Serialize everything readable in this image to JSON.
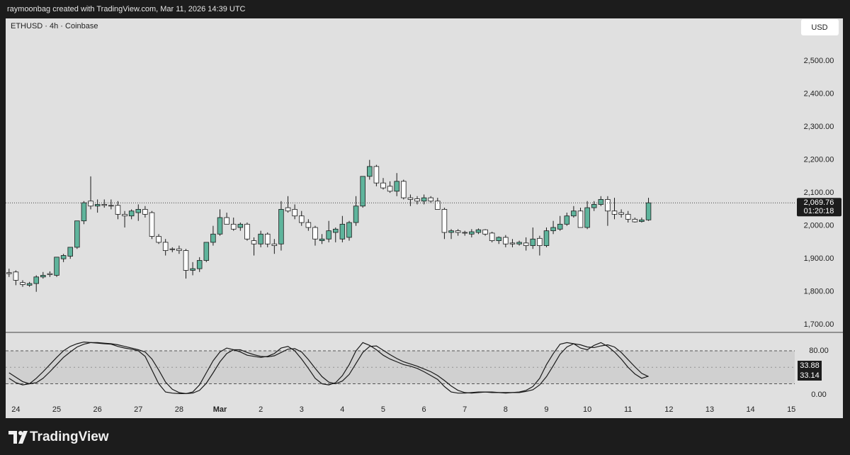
{
  "header": {
    "caption": "raymoonbag created with TradingView.com, Mar 11, 2026 14:39 UTC",
    "currency": "USD"
  },
  "footer": {
    "brand": "TradingView"
  },
  "chart_data": [
    {
      "type": "candlestick",
      "title": "ETHUSD · 4h · Coinbase",
      "open": [
        1858,
        1860,
        1828,
        1820,
        1825,
        1845,
        1855,
        1850,
        1900,
        1908,
        1935,
        2015,
        2075,
        2060,
        2065,
        2062,
        2062,
        2035,
        2030,
        2040,
        2050,
        2040,
        1968,
        1950,
        1930,
        1930,
        1925,
        1865,
        1870,
        1895,
        1950,
        1975,
        2025,
        2005,
        1995,
        2005,
        1955,
        1945,
        1975,
        1945,
        1945,
        2055,
        2050,
        2030,
        2010,
        1995,
        1955,
        1960,
        1980,
        1960,
        1965,
        2010,
        2060,
        2150,
        2180,
        2130,
        2120,
        2105,
        2135,
        2085,
        2082,
        2075,
        2085,
        2075,
        2050,
        1980,
        1985,
        1980,
        1975,
        1980,
        1988,
        1978,
        1955,
        1965,
        1948,
        1945,
        1948,
        1940,
        1962,
        1940,
        1985,
        1990,
        2005,
        2030,
        2045,
        1995,
        2055,
        2065,
        2080,
        2045,
        2040,
        2035,
        2020,
        2013,
        2018
      ],
      "high": [
        1870,
        1865,
        1835,
        1830,
        1850,
        1860,
        1862,
        1905,
        1915,
        1935,
        2015,
        2075,
        2150,
        2080,
        2080,
        2080,
        2075,
        2045,
        2050,
        2065,
        2060,
        2045,
        1975,
        1960,
        1935,
        1940,
        1930,
        1890,
        1905,
        1950,
        2000,
        2050,
        2040,
        2025,
        2010,
        2010,
        1965,
        1985,
        1980,
        1960,
        2075,
        2090,
        2065,
        2045,
        2020,
        2000,
        1975,
        2015,
        1995,
        2030,
        2015,
        2090,
        2150,
        2200,
        2185,
        2145,
        2135,
        2160,
        2140,
        2095,
        2090,
        2095,
        2090,
        2085,
        2055,
        1990,
        1990,
        1985,
        1990,
        1992,
        1990,
        1982,
        1968,
        1972,
        1960,
        1955,
        1965,
        1995,
        1970,
        1995,
        2015,
        2030,
        2040,
        2060,
        2055,
        2075,
        2075,
        2090,
        2090,
        2085,
        2050,
        2045,
        2025,
        2025,
        2085
      ],
      "low": [
        1845,
        1820,
        1815,
        1815,
        1800,
        1840,
        1845,
        1845,
        1890,
        1900,
        1930,
        2005,
        2050,
        2040,
        2055,
        2050,
        2020,
        1995,
        2020,
        2015,
        2025,
        1960,
        1945,
        1910,
        1920,
        1915,
        1840,
        1850,
        1860,
        1890,
        1940,
        1970,
        2005,
        1985,
        1985,
        1955,
        1910,
        1935,
        1935,
        1915,
        1925,
        2040,
        2020,
        2000,
        1985,
        1940,
        1945,
        1950,
        1950,
        1950,
        1955,
        2000,
        2055,
        2140,
        2120,
        2110,
        2100,
        2090,
        2080,
        2060,
        2065,
        2065,
        2070,
        2050,
        1960,
        1960,
        1970,
        1970,
        1965,
        1975,
        1970,
        1950,
        1945,
        1935,
        1935,
        1940,
        1925,
        1930,
        1910,
        1935,
        1975,
        1985,
        2000,
        2025,
        1995,
        1990,
        2045,
        2060,
        2000,
        2020,
        2025,
        2010,
        2010,
        2010,
        2015
      ],
      "close": [
        1855,
        1835,
        1822,
        1825,
        1845,
        1850,
        1852,
        1905,
        1910,
        1935,
        2015,
        2070,
        2060,
        2065,
        2062,
        2060,
        2035,
        2030,
        2045,
        2050,
        2035,
        1968,
        1950,
        1925,
        1928,
        1925,
        1865,
        1870,
        1895,
        1950,
        1975,
        2025,
        2005,
        1990,
        2005,
        1960,
        1945,
        1975,
        1945,
        1940,
        2050,
        2045,
        2030,
        2010,
        1995,
        1960,
        1960,
        1985,
        1990,
        2005,
        2010,
        2060,
        2150,
        2180,
        2130,
        2115,
        2105,
        2135,
        2085,
        2080,
        2075,
        2085,
        2075,
        2050,
        1980,
        1985,
        1980,
        1978,
        1982,
        1988,
        1975,
        1955,
        1965,
        1945,
        1945,
        1950,
        1940,
        1960,
        1940,
        1985,
        1995,
        2005,
        2030,
        2045,
        1995,
        2055,
        2065,
        2080,
        2045,
        2035,
        2035,
        2020,
        2012,
        2018,
        2069.76
      ],
      "last_label": "2,069.76",
      "countdown": "01:20:18",
      "up_color": "#5fb49c",
      "down_color": "#ffffff",
      "outline": "#1a1a1a",
      "ylim": [
        1679,
        2629
      ],
      "yticks": [
        {
          "value": 1700,
          "label": "1,700.00"
        },
        {
          "value": 1800,
          "label": "1,800.00"
        },
        {
          "value": 1900,
          "label": "1,900.00"
        },
        {
          "value": 2000,
          "label": "2,000.00"
        },
        {
          "value": 2100,
          "label": "2,100.00"
        },
        {
          "value": 2200,
          "label": "2,200.00"
        },
        {
          "value": 2300,
          "label": "2,300.00"
        },
        {
          "value": 2400,
          "label": "2,400.00"
        },
        {
          "value": 2500,
          "label": "2,500.00"
        }
      ],
      "xlim": [
        -0.5,
        115.5
      ],
      "xticks": [
        {
          "value": 1,
          "label": "24"
        },
        {
          "value": 7,
          "label": "25"
        },
        {
          "value": 13,
          "label": "26"
        },
        {
          "value": 19,
          "label": "27"
        },
        {
          "value": 25,
          "label": "28"
        },
        {
          "value": 31,
          "label": "Mar"
        },
        {
          "value": 37,
          "label": "2"
        },
        {
          "value": 43,
          "label": "3"
        },
        {
          "value": 49,
          "label": "4"
        },
        {
          "value": 55,
          "label": "5"
        },
        {
          "value": 61,
          "label": "6"
        },
        {
          "value": 67,
          "label": "7"
        },
        {
          "value": 73,
          "label": "8"
        },
        {
          "value": 79,
          "label": "9"
        },
        {
          "value": 85,
          "label": "10"
        },
        {
          "value": 91,
          "label": "11"
        },
        {
          "value": 97,
          "label": "12"
        },
        {
          "value": 103,
          "label": "13"
        },
        {
          "value": 109,
          "label": "14"
        },
        {
          "value": 115,
          "label": "15"
        }
      ]
    },
    {
      "type": "line",
      "levels": [
        20,
        50,
        80
      ],
      "series": [
        {
          "color": "#1a1a1a",
          "values": [
            30,
            22,
            18,
            20,
            30,
            42,
            55,
            68,
            80,
            88,
            93,
            96,
            95,
            94,
            93,
            92,
            88,
            85,
            83,
            80,
            70,
            45,
            20,
            5,
            3,
            2,
            2,
            5,
            18,
            40,
            62,
            78,
            85,
            82,
            78,
            72,
            70,
            68,
            70,
            75,
            85,
            88,
            80,
            65,
            48,
            30,
            20,
            18,
            22,
            35,
            55,
            80,
            95,
            90,
            82,
            72,
            65,
            60,
            55,
            52,
            48,
            42,
            35,
            28,
            15,
            5,
            3,
            3,
            4,
            5,
            5,
            4,
            4,
            3,
            4,
            5,
            8,
            15,
            30,
            55,
            75,
            92,
            95,
            93,
            85,
            82,
            90,
            95,
            88,
            78,
            65,
            50,
            38,
            30,
            33.88
          ]
        },
        {
          "color": "#1a1a1a",
          "values": [
            40,
            32,
            24,
            20,
            22,
            30,
            42,
            55,
            68,
            78,
            87,
            92,
            95,
            95,
            94,
            93,
            91,
            88,
            85,
            82,
            78,
            65,
            45,
            23,
            10,
            4,
            2,
            3,
            8,
            21,
            40,
            60,
            75,
            82,
            82,
            77,
            73,
            70,
            69,
            71,
            77,
            83,
            84,
            78,
            64,
            48,
            33,
            23,
            20,
            25,
            37,
            57,
            77,
            88,
            89,
            81,
            73,
            66,
            60,
            56,
            52,
            47,
            42,
            35,
            26,
            16,
            8,
            4,
            3,
            4,
            5,
            5,
            4,
            4,
            4,
            4,
            6,
            9,
            18,
            33,
            53,
            74,
            87,
            93,
            91,
            87,
            86,
            89,
            91,
            87,
            77,
            64,
            51,
            39,
            33.14
          ]
        }
      ],
      "ylim": [
        -42.6,
        112.3
      ],
      "yticks": [
        {
          "value": 0,
          "label": "0.00"
        },
        {
          "value": 80,
          "label": "80.00"
        }
      ]
    }
  ]
}
